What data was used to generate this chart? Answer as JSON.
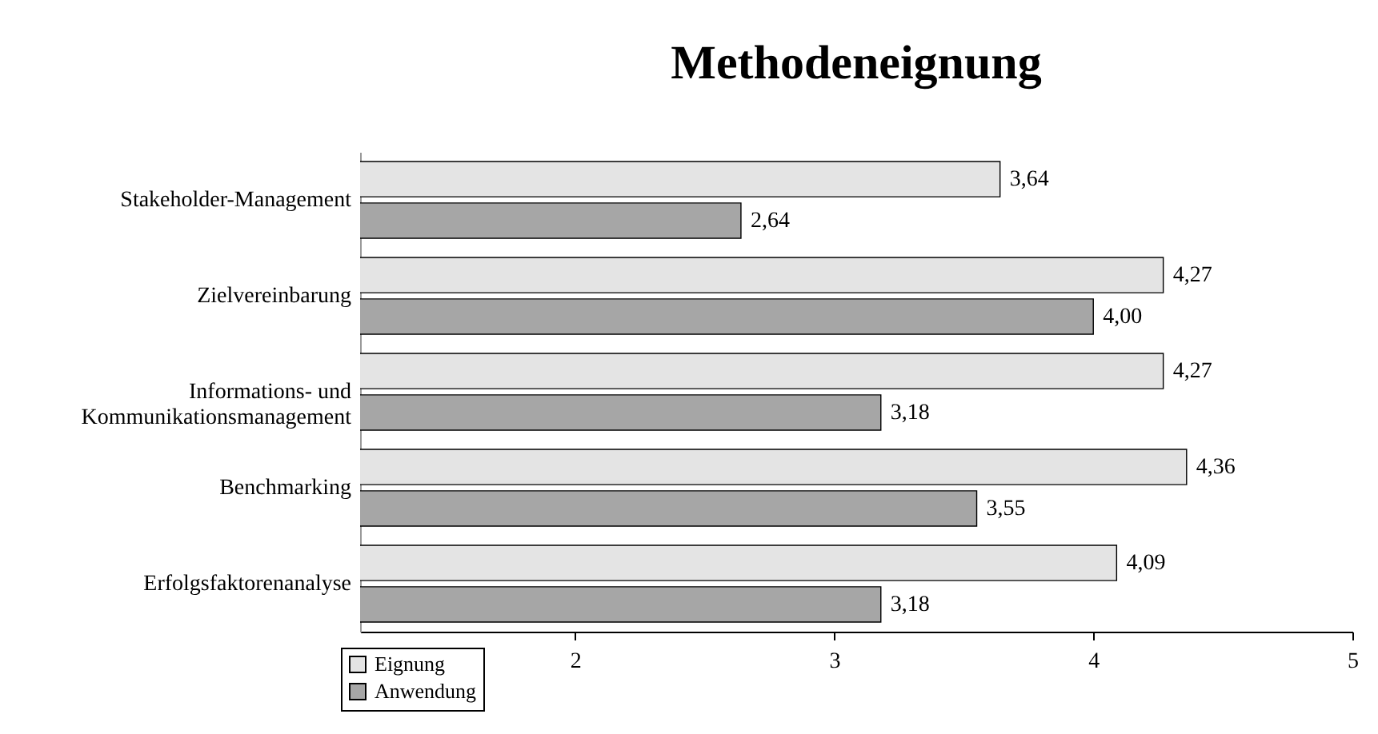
{
  "chart_data": {
    "type": "bar",
    "orientation": "horizontal",
    "title": "Methodeneignung",
    "categories": [
      "Stakeholder-Management",
      "Zielvereinbarung",
      "Informations- und Kommunikationsmanagement",
      "Benchmarking",
      "Erfolgsfaktorenanalyse"
    ],
    "series": [
      {
        "name": "Eignung",
        "color": "#e4e4e4",
        "values": [
          3.64,
          4.27,
          4.27,
          4.36,
          4.09
        ],
        "value_labels": [
          "3,64",
          "4,27",
          "4,27",
          "4,36",
          "4,09"
        ]
      },
      {
        "name": "Anwendung",
        "color": "#a6a6a6",
        "values": [
          2.64,
          4.0,
          3.18,
          3.55,
          3.18
        ],
        "value_labels": [
          "2,64",
          "4,00",
          "3,18",
          "3,55",
          "3,18"
        ]
      }
    ],
    "xlim": [
      1.17,
      5
    ],
    "xticks": [
      2,
      3,
      4,
      5
    ],
    "grid": false,
    "legend": "bottom left"
  }
}
